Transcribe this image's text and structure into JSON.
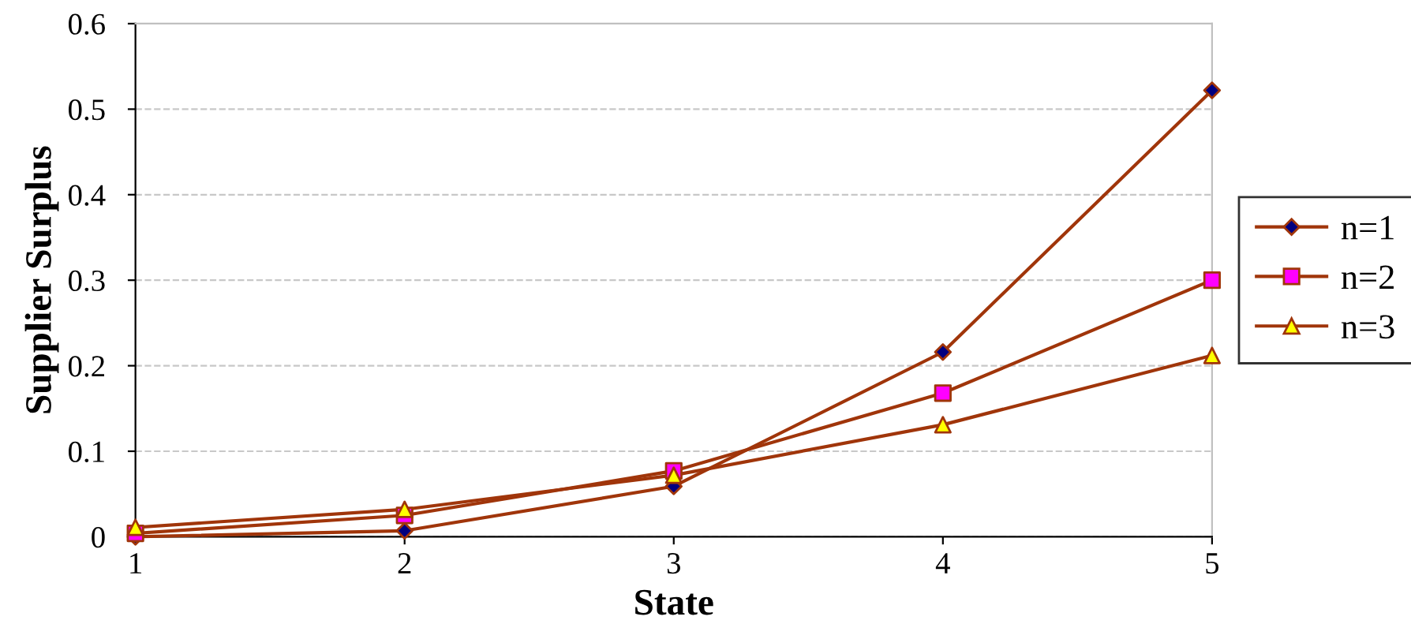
{
  "chart_data": {
    "type": "line",
    "xlabel": "State",
    "ylabel": "Supplier Surplus",
    "x": [
      1,
      2,
      3,
      4,
      5
    ],
    "series": [
      {
        "name": "n=1",
        "color": "#a0350a",
        "marker": "diamond",
        "colors": [
          "#000080",
          "#000080",
          "#000080",
          "#000080",
          "#000080"
        ],
        "values": [
          0.0,
          0.007,
          0.059,
          0.216,
          0.522
        ]
      },
      {
        "name": "n=2",
        "color": "#a0350a",
        "marker": "square",
        "colors": [
          "#ff00ff",
          "#ff00ff",
          "#ff00ff",
          "#ff00ff",
          "#ff00ff"
        ],
        "values": [
          0.004,
          0.025,
          0.077,
          0.168,
          0.3
        ]
      },
      {
        "name": "n=3",
        "color": "#a0350a",
        "marker": "triangle",
        "colors": [
          "#ffff00",
          "#ffff00",
          "#ffff00",
          "#ffff00",
          "#ffff00"
        ],
        "values": [
          0.011,
          0.032,
          0.072,
          0.131,
          0.212
        ]
      }
    ],
    "xlim": [
      1,
      5
    ],
    "xticks": [
      1,
      2,
      3,
      4,
      5
    ],
    "ylim": [
      0,
      0.6
    ],
    "yticks": [
      0,
      0.1,
      0.2,
      0.3,
      0.4,
      0.5,
      0.6
    ],
    "grid": "y",
    "legend": "right",
    "line_style": "solid"
  }
}
